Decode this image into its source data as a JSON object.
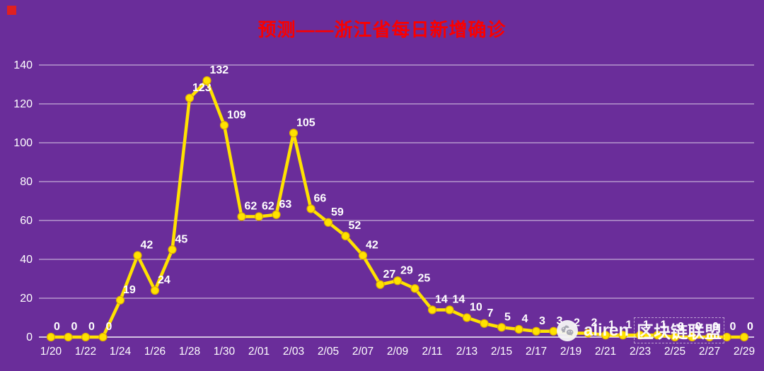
{
  "colors": {
    "background": "#6A2D9A",
    "title": "#FA0000",
    "line": "#FFE200",
    "marker_stroke": "#DFAE00",
    "grid": "#FFFFFF",
    "axis_text": "#FFFFFF",
    "data_label": "#FFFFFF",
    "corner_marker": "#E02020"
  },
  "watermark": {
    "icon": "wechat-icon",
    "latin": "aliren",
    "cn": "区块链联盟"
  },
  "chart_data": {
    "type": "line",
    "title": "预测——浙江省每日新增确诊",
    "x": [
      "1/20",
      "1/21",
      "1/22",
      "1/23",
      "1/24",
      "1/25",
      "1/26",
      "1/27",
      "1/28",
      "1/29",
      "1/30",
      "1/31",
      "2/01",
      "2/02",
      "2/03",
      "2/04",
      "2/05",
      "2/06",
      "2/07",
      "2/08",
      "2/09",
      "2/10",
      "2/11",
      "2/12",
      "2/13",
      "2/14",
      "2/15",
      "2/16",
      "2/17",
      "2/18",
      "2/19",
      "2/20",
      "2/21",
      "2/22",
      "2/23",
      "2/24",
      "2/25",
      "2/26",
      "2/27",
      "2/28",
      "2/29"
    ],
    "values": [
      0,
      0,
      0,
      0,
      19,
      42,
      24,
      45,
      123,
      132,
      109,
      62,
      62,
      63,
      105,
      66,
      59,
      52,
      42,
      27,
      29,
      25,
      14,
      14,
      10,
      7,
      5,
      4,
      3,
      3,
      2,
      2,
      1,
      1,
      1,
      1,
      0,
      0,
      0,
      0,
      0
    ],
    "yticks": [
      0,
      20,
      40,
      60,
      80,
      100,
      120,
      140
    ],
    "ylim": [
      0,
      140
    ],
    "x_tick_step": 2,
    "grid": true,
    "legend": "none",
    "xlabel": "",
    "ylabel": ""
  }
}
